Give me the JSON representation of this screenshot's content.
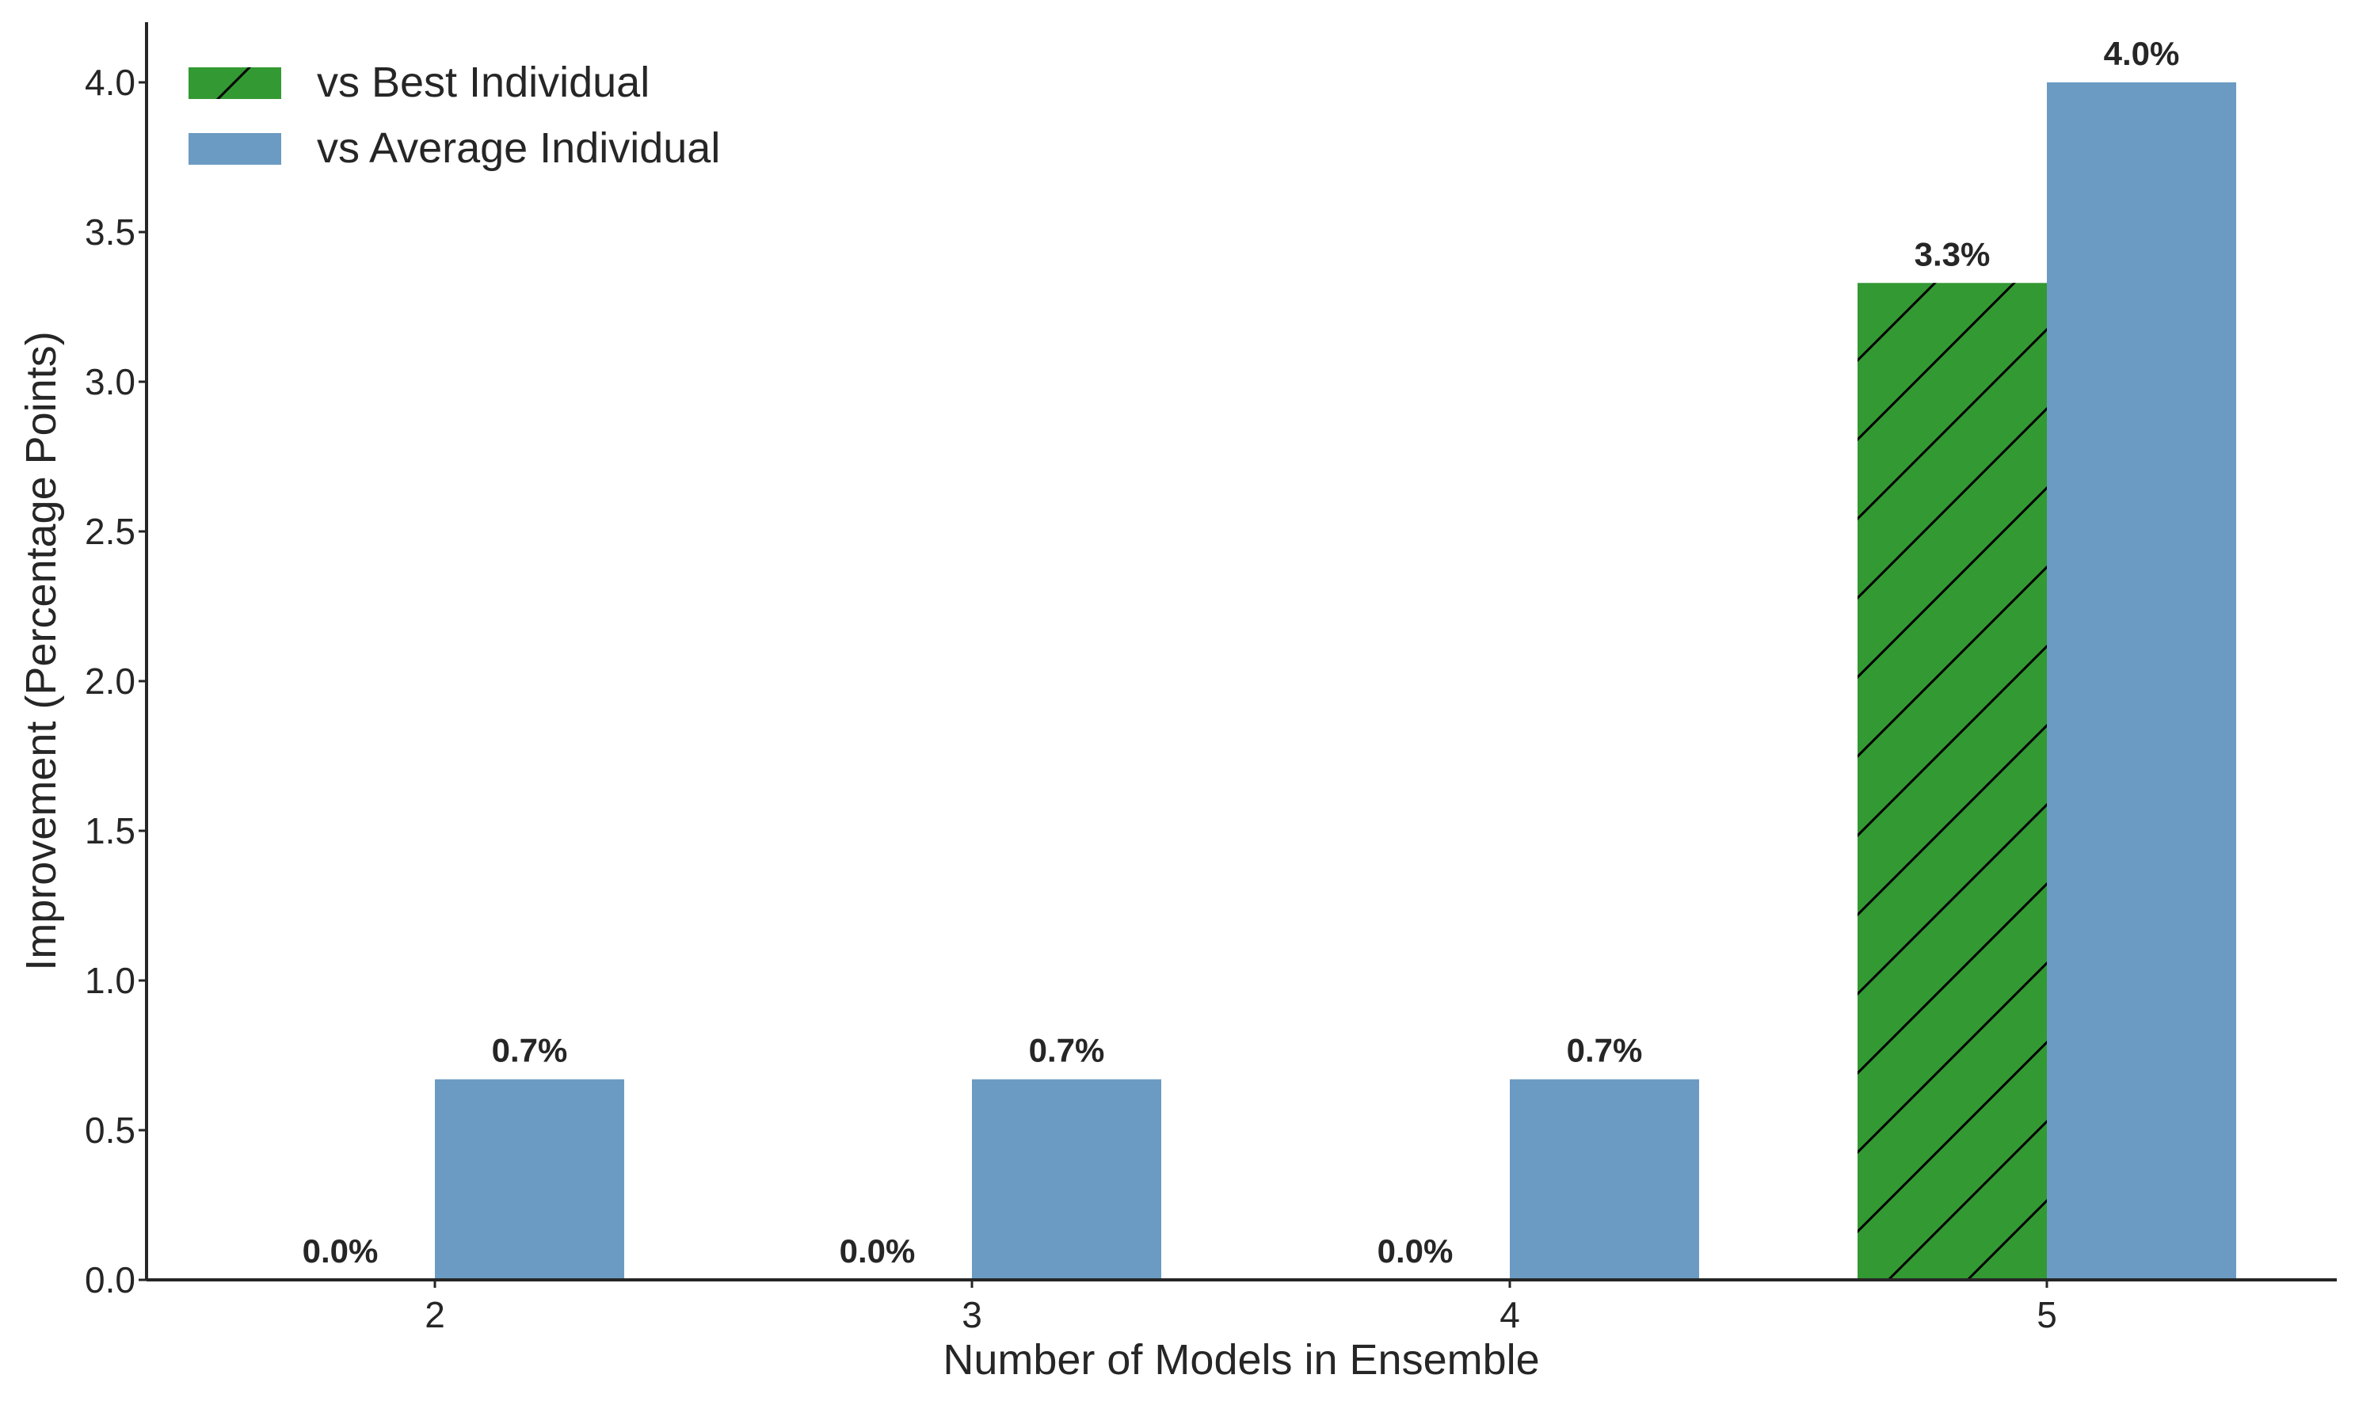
{
  "chart_data": {
    "type": "bar",
    "categories": [
      "2",
      "3",
      "4",
      "5"
    ],
    "series": [
      {
        "name": "vs Best Individual",
        "values": [
          0.0,
          0.0,
          0.0,
          3.33
        ],
        "labels": [
          "0.0%",
          "0.0%",
          "0.0%",
          "3.3%"
        ],
        "color": "#339933",
        "hatch": "/"
      },
      {
        "name": "vs Average Individual",
        "values": [
          0.67,
          0.67,
          0.67,
          4.0
        ],
        "labels": [
          "0.7%",
          "0.7%",
          "0.7%",
          "4.0%"
        ],
        "color": "#6b9bc3",
        "hatch": ""
      }
    ],
    "title": "",
    "xlabel": "Number of Models in Ensemble",
    "ylabel": "Improvement (Percentage Points)",
    "ylim": [
      0,
      4.2
    ],
    "yticks": [
      "0.0",
      "0.5",
      "1.0",
      "1.5",
      "2.0",
      "2.5",
      "3.0",
      "3.5",
      "4.0"
    ],
    "grid": false,
    "legend_position": "top-left"
  }
}
